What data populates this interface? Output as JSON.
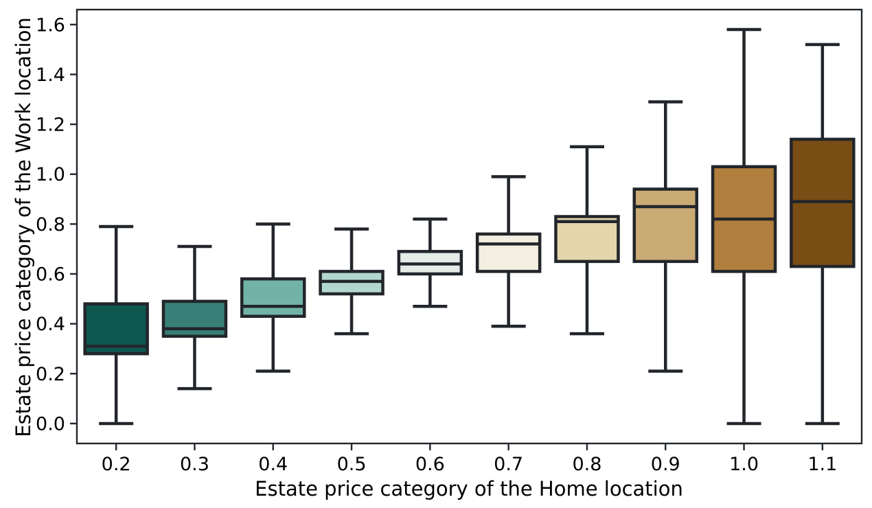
{
  "figure": {
    "background": "#ffffff"
  },
  "chart_data": {
    "type": "boxplot",
    "title": "",
    "xlabel": "Estate price category of the Home location",
    "ylabel": "Estate price category of the Work location",
    "categories": [
      "0.2",
      "0.3",
      "0.4",
      "0.5",
      "0.6",
      "0.7",
      "0.8",
      "0.9",
      "1.0",
      "1.1"
    ],
    "y_tick_labels": [
      "0.0",
      "0.2",
      "0.4",
      "0.6",
      "0.8",
      "1.0",
      "1.2",
      "1.4",
      "1.6"
    ],
    "y_tick_values": [
      0.0,
      0.2,
      0.4,
      0.6,
      0.8,
      1.0,
      1.2,
      1.4,
      1.6
    ],
    "ylim": [
      -0.08,
      1.66
    ],
    "grid": false,
    "legend": "none",
    "text_color": "#000000",
    "edge_color": "#22262b",
    "boxes": [
      {
        "category": "0.2",
        "fill": "#0e5850",
        "whisker_low": 0.0,
        "q1": 0.28,
        "median": 0.31,
        "q3": 0.48,
        "whisker_high": 0.79
      },
      {
        "category": "0.3",
        "fill": "#388077",
        "whisker_low": 0.14,
        "q1": 0.35,
        "median": 0.38,
        "q3": 0.49,
        "whisker_high": 0.71
      },
      {
        "category": "0.4",
        "fill": "#71b4a7",
        "whisker_low": 0.21,
        "q1": 0.43,
        "median": 0.47,
        "q3": 0.58,
        "whisker_high": 0.8
      },
      {
        "category": "0.5",
        "fill": "#b2d7cc",
        "whisker_low": 0.36,
        "q1": 0.52,
        "median": 0.57,
        "q3": 0.61,
        "whisker_high": 0.78
      },
      {
        "category": "0.6",
        "fill": "#e4ece8",
        "whisker_low": 0.47,
        "q1": 0.6,
        "median": 0.64,
        "q3": 0.69,
        "whisker_high": 0.82
      },
      {
        "category": "0.7",
        "fill": "#f2eee1",
        "whisker_low": 0.39,
        "q1": 0.61,
        "median": 0.72,
        "q3": 0.76,
        "whisker_high": 0.99
      },
      {
        "category": "0.8",
        "fill": "#e3d6ab",
        "whisker_low": 0.36,
        "q1": 0.65,
        "median": 0.81,
        "q3": 0.83,
        "whisker_high": 1.11
      },
      {
        "category": "0.9",
        "fill": "#cbab74",
        "whisker_low": 0.21,
        "q1": 0.65,
        "median": 0.87,
        "q3": 0.94,
        "whisker_high": 1.29
      },
      {
        "category": "1.0",
        "fill": "#b07f3d",
        "whisker_low": 0.0,
        "q1": 0.61,
        "median": 0.82,
        "q3": 1.03,
        "whisker_high": 1.58
      },
      {
        "category": "1.1",
        "fill": "#7a4d15",
        "whisker_low": 0.0,
        "q1": 0.63,
        "median": 0.89,
        "q3": 1.14,
        "whisker_high": 1.52
      }
    ]
  }
}
